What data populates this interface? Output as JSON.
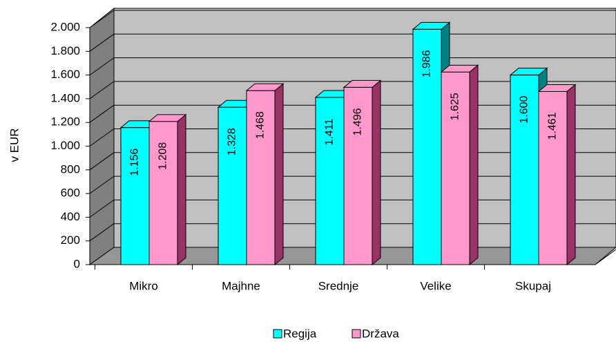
{
  "chart_data": {
    "type": "bar3d",
    "y_label": "v EUR",
    "categories": [
      "Mikro",
      "Majhne",
      "Srednje",
      "Velike",
      "Skupaj"
    ],
    "series": [
      {
        "name": "Regija",
        "color": "#00ffff",
        "values": [
          1156,
          1328,
          1411,
          1986,
          1600
        ],
        "value_labels": [
          "1.156",
          "1.328",
          "1.411",
          "1.986",
          "1.600"
        ]
      },
      {
        "name": "Država",
        "color": "#ff99cc",
        "values": [
          1208,
          1468,
          1496,
          1625,
          1461
        ],
        "value_labels": [
          "1.208",
          "1.468",
          "1.496",
          "1.625",
          "1.461"
        ]
      }
    ],
    "ylim": [
      0,
      2000
    ],
    "yticks": [
      0,
      200,
      400,
      600,
      800,
      {
        "value": 1000,
        "label": "1.000"
      },
      {
        "value": 1200,
        "label": "1.200"
      },
      {
        "value": 1400,
        "label": "1.400"
      },
      {
        "value": 1600,
        "label": "1.600"
      },
      {
        "value": 1800,
        "label": "1.800"
      },
      {
        "value": 2000,
        "label": "2.000"
      }
    ],
    "grid": true
  }
}
